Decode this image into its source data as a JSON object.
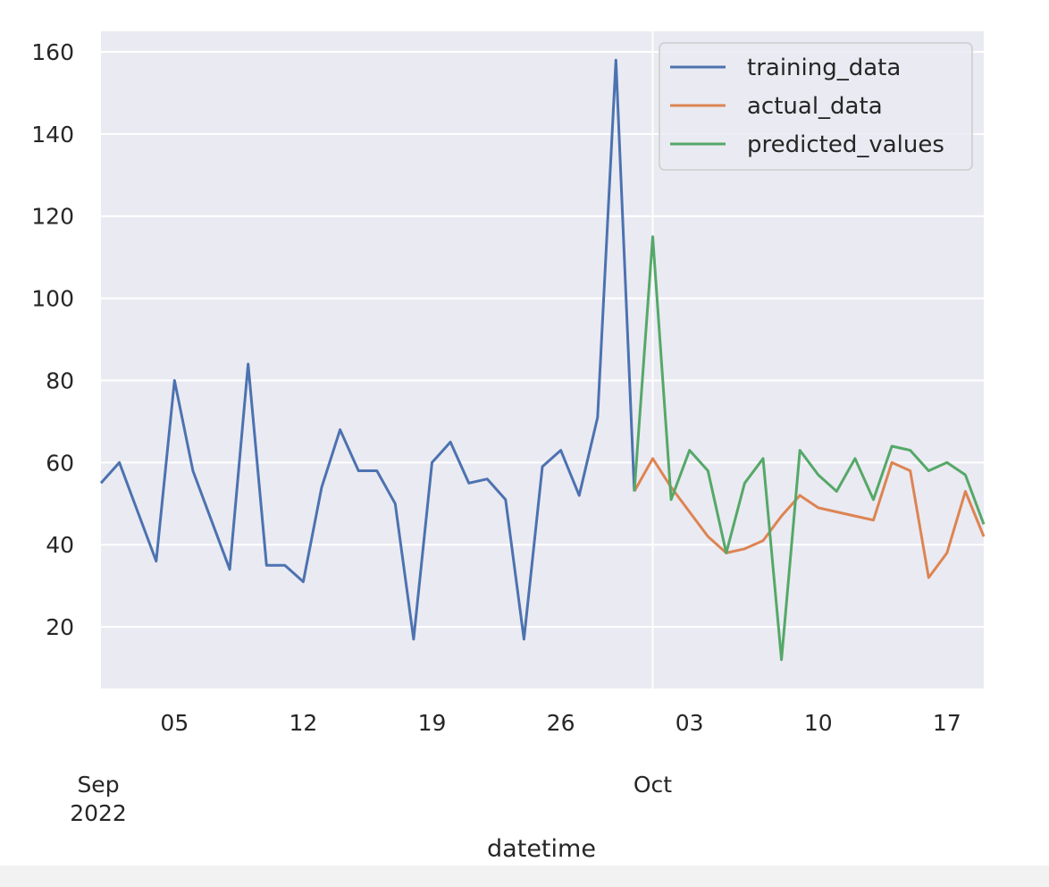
{
  "chart_data": {
    "type": "line",
    "xlabel": "datetime",
    "ylabel": "",
    "ylim": [
      5,
      165
    ],
    "xlim": [
      "2022-09-01",
      "2022-10-19"
    ],
    "y_ticks": [
      20,
      40,
      60,
      80,
      100,
      120,
      140,
      160
    ],
    "x_ticks": [
      {
        "date": "2022-09-05",
        "label": "05"
      },
      {
        "date": "2022-09-12",
        "label": "12"
      },
      {
        "date": "2022-09-19",
        "label": "19"
      },
      {
        "date": "2022-09-26",
        "label": "26"
      },
      {
        "date": "2022-10-03",
        "label": "03"
      },
      {
        "date": "2022-10-10",
        "label": "10"
      },
      {
        "date": "2022-10-17",
        "label": "17"
      }
    ],
    "x_major_ticks": [
      {
        "date": "2022-09-01",
        "label": "Sep",
        "sublabel": "2022"
      },
      {
        "date": "2022-10-01",
        "label": "Oct"
      }
    ],
    "grid": true,
    "legend_position": "top-right",
    "series": [
      {
        "name": "training_data",
        "color": "#4c72b0",
        "x": [
          "2022-09-01",
          "2022-09-02",
          "2022-09-03",
          "2022-09-04",
          "2022-09-05",
          "2022-09-06",
          "2022-09-07",
          "2022-09-08",
          "2022-09-09",
          "2022-09-10",
          "2022-09-11",
          "2022-09-12",
          "2022-09-13",
          "2022-09-14",
          "2022-09-15",
          "2022-09-16",
          "2022-09-17",
          "2022-09-18",
          "2022-09-19",
          "2022-09-20",
          "2022-09-21",
          "2022-09-22",
          "2022-09-23",
          "2022-09-24",
          "2022-09-25",
          "2022-09-26",
          "2022-09-27",
          "2022-09-28",
          "2022-09-29",
          "2022-09-30"
        ],
        "values": [
          55,
          60,
          48,
          36,
          80,
          58,
          46,
          34,
          84,
          35,
          35,
          31,
          54,
          68,
          58,
          58,
          50,
          17,
          60,
          65,
          55,
          56,
          51,
          17,
          59,
          63,
          52,
          71,
          158,
          53
        ]
      },
      {
        "name": "actual_data",
        "color": "#dd8452",
        "x": [
          "2022-09-30",
          "2022-10-01",
          "2022-10-02",
          "2022-10-03",
          "2022-10-04",
          "2022-10-05",
          "2022-10-06",
          "2022-10-07",
          "2022-10-08",
          "2022-10-09",
          "2022-10-10",
          "2022-10-11",
          "2022-10-12",
          "2022-10-13",
          "2022-10-14",
          "2022-10-15",
          "2022-10-16",
          "2022-10-17",
          "2022-10-18",
          "2022-10-19"
        ],
        "values": [
          53,
          61,
          54,
          48,
          42,
          38,
          39,
          41,
          47,
          52,
          49,
          48,
          47,
          46,
          60,
          58,
          32,
          38,
          53,
          42
        ]
      },
      {
        "name": "predicted_values",
        "color": "#55a868",
        "x": [
          "2022-09-30",
          "2022-10-01",
          "2022-10-02",
          "2022-10-03",
          "2022-10-04",
          "2022-10-05",
          "2022-10-06",
          "2022-10-07",
          "2022-10-08",
          "2022-10-09",
          "2022-10-10",
          "2022-10-11",
          "2022-10-12",
          "2022-10-13",
          "2022-10-14",
          "2022-10-15",
          "2022-10-16",
          "2022-10-17",
          "2022-10-18",
          "2022-10-19"
        ],
        "values": [
          53,
          115,
          51,
          63,
          58,
          38,
          55,
          61,
          12,
          63,
          57,
          53,
          61,
          51,
          64,
          63,
          58,
          60,
          57,
          45
        ]
      }
    ]
  }
}
